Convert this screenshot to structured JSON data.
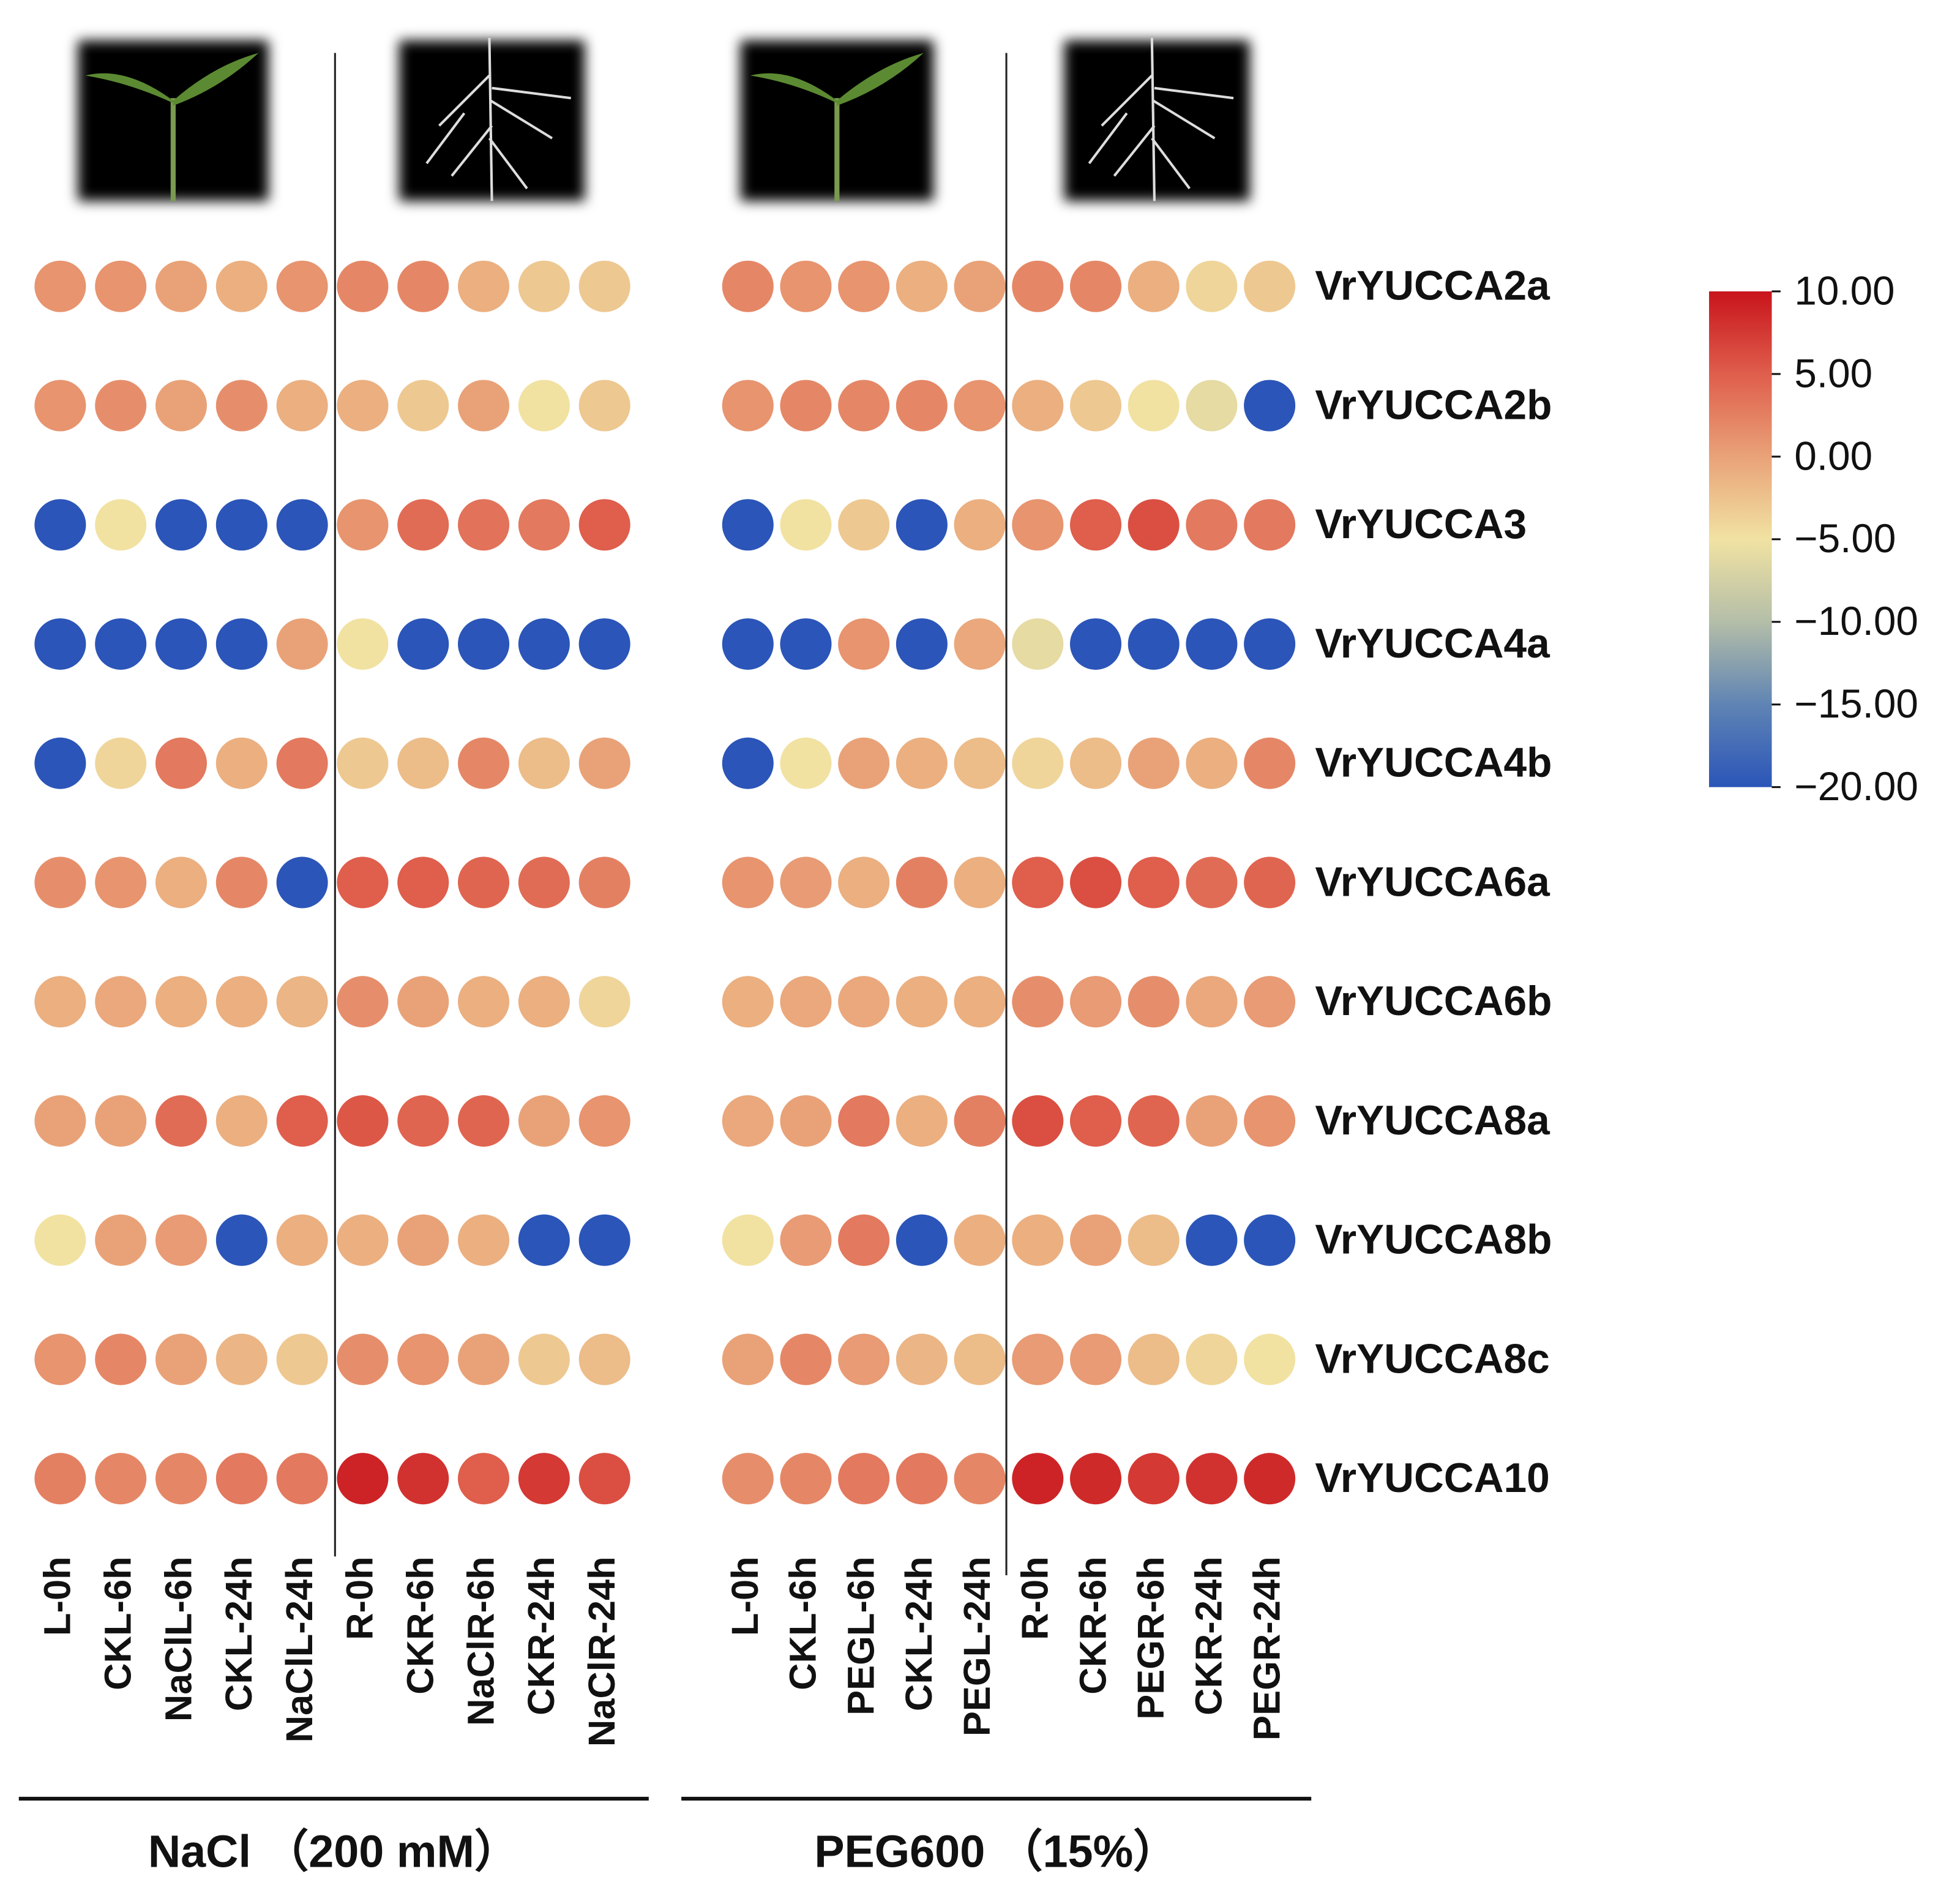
{
  "chart_data": {
    "type": "heatmap",
    "rows": [
      "VrYUCCA2a",
      "VrYUCCA2b",
      "VrYUCCA3",
      "VrYUCCA4a",
      "VrYUCCA4b",
      "VrYUCCA6a",
      "VrYUCCA6b",
      "VrYUCCA8a",
      "VrYUCCA8b",
      "VrYUCCA8c",
      "VrYUCCA10"
    ],
    "panels": [
      {
        "title": "NaCl （200 mM）",
        "columns": [
          "L-0h",
          "CKL-6h",
          "NaClL-6h",
          "CKL-24h",
          "NaClL-24h",
          "R-0h",
          "CKR-6h",
          "NaClR-6h",
          "CKR-24h",
          "NaClR-24h"
        ],
        "values": [
          [
            1,
            1,
            0,
            -1,
            1,
            2,
            2,
            -1,
            -3,
            -3
          ],
          [
            1,
            1.5,
            0,
            1.5,
            -1,
            -1,
            -3,
            0,
            -5,
            -3
          ],
          [
            -20,
            -5,
            -20,
            -20,
            -20,
            1,
            4,
            3.5,
            3,
            5
          ],
          [
            -20,
            -20,
            -20,
            -20,
            0,
            -5,
            -20,
            -20,
            -20,
            -20
          ],
          [
            -20,
            -4,
            3,
            -1,
            3,
            -3,
            -2,
            2,
            -2,
            0
          ],
          [
            1.5,
            1,
            -1,
            2,
            -20,
            5,
            5,
            4.5,
            4,
            2.5
          ],
          [
            -1,
            -0.5,
            -1,
            -1,
            -1.5,
            1.5,
            0,
            -1,
            -1,
            -4
          ],
          [
            0,
            0,
            4,
            -1,
            5,
            5.5,
            4.5,
            4.5,
            0,
            1
          ],
          [
            -5,
            0,
            0.5,
            -20,
            -1,
            -1,
            0,
            -1,
            -20,
            -20
          ],
          [
            1,
            2,
            0,
            -1.5,
            -3,
            1.5,
            1,
            0,
            -3,
            -2
          ],
          [
            2.5,
            2,
            2,
            3,
            3,
            9,
            8,
            5,
            7.5,
            6
          ]
        ]
      },
      {
        "title": "PEG600 （15%）",
        "columns": [
          "L-0h",
          "CKL-6h",
          "PEGL-6h",
          "CKL-24h",
          "PEGL-24h",
          "R-0h",
          "CKR-6h",
          "PEGR-6h",
          "CKR-24h",
          "PEGR-24h"
        ],
        "values": [
          [
            2,
            1,
            1,
            -1,
            0,
            2,
            2,
            -1,
            -4,
            -3
          ],
          [
            1,
            2,
            2,
            2,
            1,
            -1,
            -3,
            -5,
            -6,
            -20
          ],
          [
            -20,
            -5,
            -3,
            -20,
            -1,
            1,
            5,
            6,
            3,
            3
          ],
          [
            -20,
            -20,
            1,
            -20,
            -0.5,
            -6,
            -20,
            -20,
            -20,
            -20
          ],
          [
            -20,
            -5,
            0,
            -1,
            -2,
            -4,
            -2,
            0,
            -1,
            2
          ],
          [
            1,
            0.5,
            -1,
            2.5,
            -1,
            5,
            6,
            5,
            4,
            4.5
          ],
          [
            -1,
            -0.5,
            -0.5,
            -1,
            -1,
            1.5,
            0.5,
            1.5,
            -0.5,
            0.5
          ],
          [
            -0.5,
            0,
            3,
            -1,
            2.5,
            6,
            5,
            4.5,
            0,
            1
          ],
          [
            -5,
            0.5,
            3,
            -20,
            -1,
            -1,
            0,
            -2,
            -20,
            -20
          ],
          [
            0,
            2,
            0.5,
            -1.5,
            -2,
            0.5,
            0.5,
            -2,
            -4,
            -5
          ],
          [
            1.5,
            2,
            3,
            3,
            2,
            9,
            8.5,
            7.5,
            8,
            8.5
          ]
        ]
      }
    ],
    "zlim": [
      -20,
      10
    ],
    "zticks": [
      {
        "value": 10,
        "label": "10.00"
      },
      {
        "value": 5,
        "label": "5.00"
      },
      {
        "value": 0,
        "label": "0.00"
      },
      {
        "value": -5,
        "label": "−5.00"
      },
      {
        "value": -10,
        "label": "−10.00"
      },
      {
        "value": -15,
        "label": "−15.00"
      },
      {
        "value": -20,
        "label": "−20.00"
      }
    ],
    "colorscale": [
      "#2b55b8",
      "#5f84b4",
      "#b4bea8",
      "#f1e2a2",
      "#e9a278",
      "#df5e4c",
      "#c8141c"
    ]
  }
}
